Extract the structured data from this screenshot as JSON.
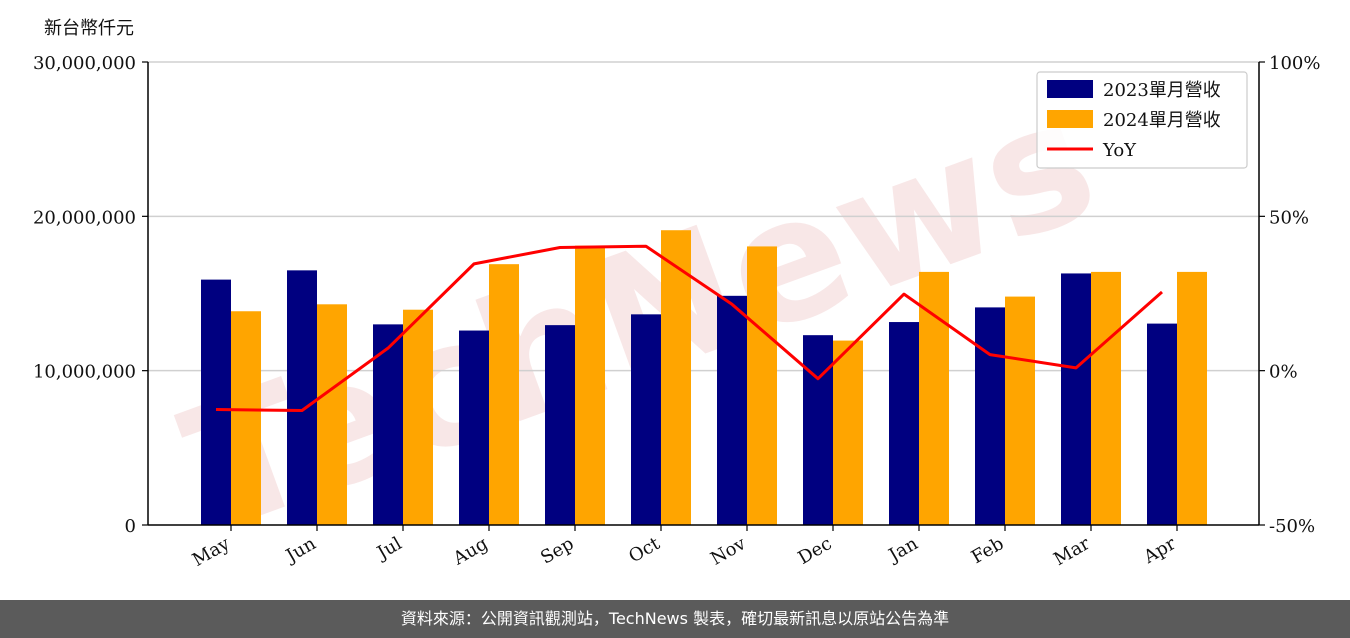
{
  "y_axis_unit": "新台幣仟元",
  "footer_text": "資料來源：公開資訊觀測站，TechNews 製表，確切最新訊息以原站公告為準",
  "watermark": "TechNews",
  "colors": {
    "bar2023": "#000080",
    "bar2024": "#ffa500",
    "yoy": "#ff0000",
    "grid": "#d0d0d0"
  },
  "chart_data": {
    "type": "bar",
    "categories": [
      "May",
      "Jun",
      "Jul",
      "Aug",
      "Sep",
      "Oct",
      "Nov",
      "Dec",
      "Jan",
      "Feb",
      "Mar",
      "Apr"
    ],
    "series": [
      {
        "name": "2023單月營收",
        "type": "bar",
        "axis": "left",
        "values": [
          15900000,
          16500000,
          13000000,
          12600000,
          12950000,
          13650000,
          14850000,
          12300000,
          13150000,
          14100000,
          16300000,
          13050000
        ]
      },
      {
        "name": "2024單月營收",
        "type": "bar",
        "axis": "left",
        "values": [
          13850000,
          14300000,
          13950000,
          16900000,
          18100000,
          19100000,
          18050000,
          11950000,
          16400000,
          14800000,
          16400000,
          16400000
        ]
      },
      {
        "name": "YoY",
        "type": "line",
        "axis": "right",
        "values": [
          -12.6,
          -12.9,
          7.3,
          34.6,
          39.9,
          40.3,
          21.5,
          -2.6,
          24.8,
          5.2,
          0.9,
          25.5
        ]
      }
    ],
    "ylim": [
      0,
      30000000
    ],
    "y_ticks": [
      "0",
      "10,000,000",
      "20,000,000",
      "30,000,000"
    ],
    "y2lim": [
      -50,
      100
    ],
    "y2_ticks": [
      "-50%",
      "0%",
      "50%",
      "100%"
    ],
    "legend": "top-right",
    "grid": "horizontal"
  }
}
